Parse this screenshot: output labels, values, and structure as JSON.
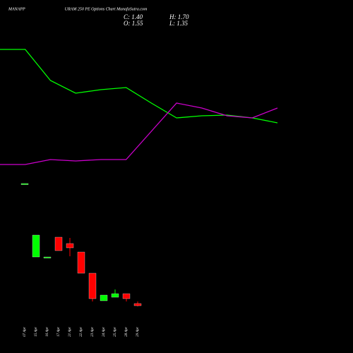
{
  "chart_data": [
    {
      "type": "line",
      "ylim": [
        0,
        100
      ],
      "series": [
        {
          "color": "#00ff00",
          "values": [
            90,
            90,
            68,
            59,
            61.5,
            63,
            52,
            41.5,
            43,
            43.5,
            41.5,
            38
          ]
        },
        {
          "color": "#cc00cc",
          "values": [
            8.5,
            8.5,
            12,
            11,
            12,
            12,
            32,
            52,
            48.5,
            43,
            41.5,
            48.5
          ]
        }
      ]
    },
    {
      "type": "candlestick",
      "title_left": "MANAPP",
      "title": "URAM 250 PE Options Chart MunafaSutra.com",
      "ohlc_labels": [
        "C: 1.40",
        "H: 1.70",
        "O: 1.55",
        "L: 1.35"
      ],
      "categories": [
        "07 Apr",
        "15 Apr",
        "16 Apr",
        "17 Apr",
        "21 Apr",
        "22 Apr",
        "23 Apr",
        "24 Apr",
        "25 Apr",
        "28 Apr",
        "29 Apr"
      ],
      "open": [
        10.05,
        4.85,
        4.85,
        6.25,
        5.8,
        5.2,
        3.7,
        1.75,
        2.0,
        2.25,
        1.55
      ],
      "high": [
        10.05,
        6.4,
        4.85,
        6.25,
        6.2,
        5.2,
        3.7,
        2.15,
        2.55,
        2.25,
        1.7
      ],
      "low": [
        10.05,
        4.85,
        4.85,
        5.3,
        4.9,
        3.7,
        1.7,
        1.75,
        2.0,
        1.7,
        1.35
      ],
      "close": [
        10.05,
        6.4,
        4.85,
        5.3,
        5.5,
        3.7,
        1.9,
        2.15,
        2.25,
        1.9,
        1.4
      ],
      "up_color": "#00ff00",
      "down_color": "#ff0000",
      "ylim": [
        1.05,
        10.55
      ]
    }
  ]
}
